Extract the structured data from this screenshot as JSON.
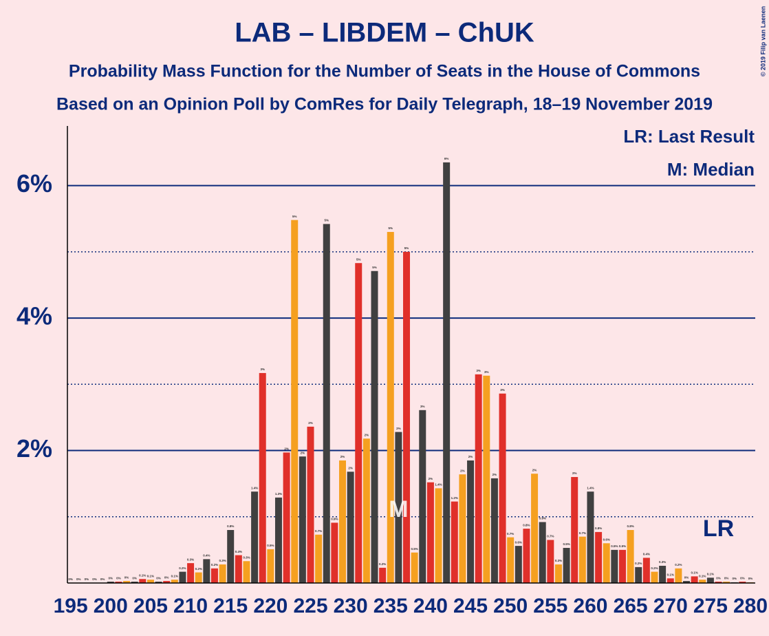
{
  "chart_data": {
    "type": "bar",
    "title": "LAB – LIBDEM – ChUK",
    "subtitle": "Probability Mass Function for the Number of Seats in the House of Commons",
    "subtitle2": "Based on an Opinion Poll by ComRes for Daily Telegraph, 18–19 November 2019",
    "copyright": "© 2019 Filip van Laenen",
    "legend_notes": [
      "LR: Last Result",
      "M: Median"
    ],
    "annotations": [
      {
        "text": "M",
        "x": 236
      },
      {
        "text": "LR",
        "x": 276
      }
    ],
    "colors": [
      "#e0302a",
      "#f5a020",
      "#404040"
    ],
    "x": [
      195,
      196,
      197,
      198,
      199,
      200,
      201,
      202,
      203,
      204,
      205,
      206,
      207,
      208,
      209,
      210,
      211,
      212,
      213,
      214,
      215,
      216,
      217,
      218,
      219,
      220,
      221,
      222,
      223,
      224,
      225,
      226,
      227,
      228,
      229,
      230,
      231,
      232,
      233,
      234,
      235,
      236,
      237,
      238,
      239,
      240,
      241,
      242,
      243,
      244,
      245,
      246,
      247,
      248,
      249,
      250,
      251,
      252,
      253,
      254,
      255,
      256,
      257,
      258,
      259,
      260,
      261,
      262,
      263,
      264,
      265,
      266,
      267,
      268,
      269,
      270,
      271,
      272,
      273,
      274,
      275,
      276,
      277,
      278,
      279,
      280
    ],
    "values": [
      0,
      0,
      0,
      0,
      0,
      0.02,
      0.02,
      0.03,
      0.02,
      0.06,
      0.05,
      0.02,
      0.03,
      0.05,
      0.17,
      0.3,
      0.16,
      0.36,
      0.22,
      0.28,
      0.8,
      0.42,
      0.33,
      1.38,
      3.17,
      0.51,
      1.29,
      1.97,
      5.48,
      1.91,
      2.36,
      0.73,
      5.42,
      0.91,
      1.85,
      1.68,
      4.83,
      2.18,
      4.71,
      0.23,
      5.3,
      2.28,
      5.0,
      0.46,
      2.61,
      1.52,
      1.43,
      6.35,
      1.23,
      1.64,
      1.85,
      3.15,
      3.13,
      1.58,
      2.86,
      0.69,
      0.56,
      0.82,
      1.65,
      0.92,
      0.65,
      0.28,
      0.53,
      1.6,
      0.7,
      1.38,
      0.77,
      0.6,
      0.5,
      0.5,
      0.8,
      0.24,
      0.38,
      0.17,
      0.26,
      0.07,
      0.22,
      0.03,
      0.1,
      0.05,
      0.08,
      0.02,
      0.02,
      0.01,
      0.02,
      0.01
    ],
    "value_labels": [
      "0%",
      "0%",
      "0%",
      "0%",
      "0%",
      "0%",
      "0%",
      "0%",
      "0%",
      "0.1%",
      "0.1%",
      "0%",
      "0%",
      "0.1%",
      "0.2%",
      "0.3%",
      "0.2%",
      "0.4%",
      "0.2%",
      "0.3%",
      "0.8%",
      "0.4%",
      "0.3%",
      "1.4%",
      "3%",
      "0.5%",
      "1.3%",
      "2%",
      "5%",
      "2%",
      "2%",
      "0.7%",
      "5%",
      "0.9%",
      "2%",
      "2%",
      "5%",
      "2%",
      "5%",
      "0.2%",
      "5%",
      "2%",
      "5%",
      "0.5%",
      "3%",
      "2%",
      "1.4%",
      "6%",
      "1.2%",
      "2%",
      "2%",
      "3%",
      "3%",
      "2%",
      "3%",
      "0.7%",
      "0.6%",
      "0.8%",
      "2%",
      "0.9%",
      "0.7%",
      "0.3%",
      "0.5%",
      "2%",
      "0.7%",
      "1.4%",
      "0.8%",
      "0.6%",
      "0.5%",
      "0.5%",
      "0.8%",
      "0.2%",
      "0.4%",
      "0.2%",
      "0.3%",
      "0.1%",
      "0.2%",
      "0%",
      "0.1%",
      "0.1%",
      "0.1%",
      "0%",
      "0%",
      "0%",
      "0%",
      "0%"
    ],
    "xlim": [
      194.6,
      280.6
    ],
    "xticks": [
      195,
      200,
      205,
      210,
      215,
      220,
      225,
      230,
      235,
      240,
      245,
      250,
      255,
      260,
      265,
      270,
      275,
      280
    ],
    "ylim": [
      0,
      6.9
    ],
    "yticks": [
      {
        "value": 2,
        "label": "2%"
      },
      {
        "value": 4,
        "label": "4%"
      },
      {
        "value": 6,
        "label": "6%"
      }
    ],
    "yminorticks": [
      1,
      3,
      5
    ],
    "grid": true
  }
}
